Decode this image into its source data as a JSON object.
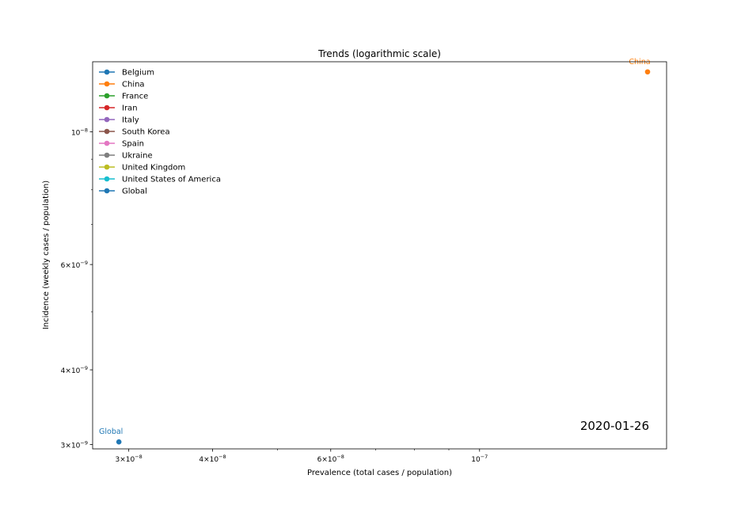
{
  "chart_data": {
    "type": "scatter",
    "title": "Trends (logarithmic scale)",
    "xlabel": "Prevalence (total cases / population)",
    "ylabel": "Incidence (weekly cases / population)",
    "x_scale": "log",
    "y_scale": "log",
    "xlim": [
      2.65e-08,
      1.9e-07
    ],
    "ylim": [
      2.95e-09,
      1.31e-08
    ],
    "x_ticks": [
      {
        "value": 3e-08,
        "base": "3",
        "sup": "−8"
      },
      {
        "value": 4e-08,
        "base": "4",
        "sup": "−8"
      },
      {
        "value": 6e-08,
        "base": "6",
        "sup": "−8"
      },
      {
        "value": 1e-07,
        "base": "",
        "sup": "−7"
      }
    ],
    "x_minor_ticks": [
      5e-08,
      7e-08,
      8e-08,
      9e-08
    ],
    "y_ticks": [
      {
        "value": 3e-09,
        "base": "3",
        "sup": "−9"
      },
      {
        "value": 4e-09,
        "base": "4",
        "sup": "−9"
      },
      {
        "value": 6e-09,
        "base": "6",
        "sup": "−9"
      },
      {
        "value": 1e-08,
        "base": "",
        "sup": "−8"
      }
    ],
    "y_minor_ticks": [
      5e-09,
      7e-09,
      8e-09,
      9e-09
    ],
    "legend_position": "top-left",
    "grid": false,
    "series": [
      {
        "name": "Belgium",
        "color": "#1f77b4",
        "points": []
      },
      {
        "name": "China",
        "color": "#ff7f0e",
        "points": [
          {
            "x": 1.78e-07,
            "y": 1.26e-08
          }
        ],
        "label": "China"
      },
      {
        "name": "France",
        "color": "#2ca02c",
        "points": []
      },
      {
        "name": "Iran",
        "color": "#d62728",
        "points": []
      },
      {
        "name": "Italy",
        "color": "#9467bd",
        "points": []
      },
      {
        "name": "South Korea",
        "color": "#8c564b",
        "points": []
      },
      {
        "name": "Spain",
        "color": "#e377c2",
        "points": []
      },
      {
        "name": "Ukraine",
        "color": "#7f7f7f",
        "points": []
      },
      {
        "name": "United Kingdom",
        "color": "#bcbd22",
        "points": []
      },
      {
        "name": "United States of America",
        "color": "#17becf",
        "points": []
      },
      {
        "name": "Global",
        "color": "#1f77b4",
        "points": [
          {
            "x": 2.9e-08,
            "y": 3.03e-09
          }
        ],
        "label": "Global"
      }
    ],
    "date_annotation": "2020-01-26"
  }
}
